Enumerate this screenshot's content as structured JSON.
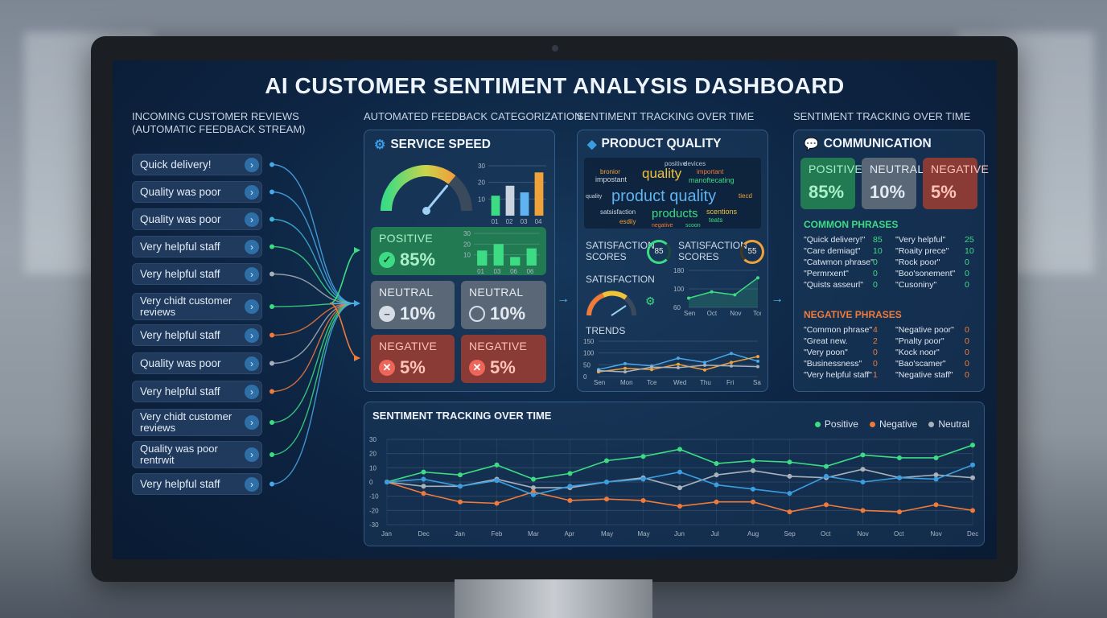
{
  "title": "AI CUSTOMER SENTIMENT ANALYSIS DASHBOARD",
  "colors": {
    "positive": "#3ddc84",
    "negative": "#f07a3a",
    "neutral": "#a9b1bb",
    "accent": "#3b9de0"
  },
  "sections": {
    "incoming_line1": "INCOMING CUSTOMER REVIEWS",
    "incoming_line2": "(AUTOMATIC FEEDBACK STREAM)",
    "categorization": "AUTOMATED FEEDBACK CATEGORIZATION",
    "tracking1": "SENTIMENT TRACKING OVER TIME",
    "tracking2": "SENTIMENT TRACKING OVER TIME"
  },
  "reviews": [
    {
      "line1": "Quick delivery!",
      "line2": ""
    },
    {
      "line1": "Quality was poor",
      "line2": ""
    },
    {
      "line1": "Quality was poor",
      "line2": ""
    },
    {
      "line1": "Very helpful staff",
      "line2": ""
    },
    {
      "line1": "Very helpful staff",
      "line2": ""
    },
    {
      "line1": "Very chidt customer",
      "line2": "reviews"
    },
    {
      "line1": "Very helpful staff",
      "line2": ""
    },
    {
      "line1": "Quality was poor",
      "line2": ""
    },
    {
      "line1": "Very helpful staff",
      "line2": ""
    },
    {
      "line1": "Very chidt customer",
      "line2": "reviews"
    },
    {
      "line1": "Quality was poor",
      "line2": "rentrwit"
    },
    {
      "line1": "Very helpful staff",
      "line2": ""
    }
  ],
  "service_speed": {
    "title": "SERVICE SPEED",
    "gauge_level": 0.72,
    "bar_ticks": [
      "30",
      "20",
      "10"
    ],
    "bar_labels": [
      "01",
      "02",
      "03",
      "04"
    ],
    "bar_values": [
      12,
      18,
      14,
      26
    ],
    "positive": {
      "label": "POSITIVE",
      "value": "85%"
    },
    "positive_bar_ticks": [
      "30",
      "20",
      "10"
    ],
    "positive_bar_labels": [
      "01",
      "03",
      "06",
      "06"
    ],
    "positive_bar_values": [
      14,
      20,
      8,
      16
    ],
    "neutral_a": {
      "label": "NEUTRAL",
      "value": "10%"
    },
    "neutral_b": {
      "label": "NEUTRAL",
      "value": "10%"
    },
    "negative_a": {
      "label": "NEGATIVE",
      "value": "5%"
    },
    "negative_b": {
      "label": "NEGATIVE",
      "value": "5%"
    }
  },
  "product_quality": {
    "title": "PRODUCT QUALITY",
    "words": [
      "positive",
      "devices",
      "bronior",
      "quality",
      "important",
      "impostant",
      "manoftecating",
      "quality",
      "product quality",
      "tiecd",
      "satsisfaction",
      "products",
      "scentions",
      "esdiiy",
      "negative",
      "scoon",
      "teats"
    ],
    "score1_label": "SATISFACTION\nSCORES",
    "score1_value": "85",
    "score2_label": "SATISFACTION\nSCORES",
    "score2_value": "55",
    "satisfaction_label": "SATISFACTION",
    "sat_chart": {
      "ticks": [
        "180",
        "100",
        "60"
      ],
      "labels": [
        "Sen",
        "Oct",
        "Nov",
        "Tce"
      ],
      "values": [
        55,
        72,
        64,
        110
      ]
    },
    "trends_label": "TRENDS",
    "trends_chart": {
      "ticks": [
        "150",
        "100",
        "50",
        "0"
      ],
      "labels": [
        "Sen",
        "Mon",
        "Tce",
        "Wed",
        "Thu",
        "Fri",
        "Sat"
      ],
      "series_blue": [
        30,
        55,
        45,
        78,
        60,
        98,
        65
      ],
      "series_orange": [
        20,
        35,
        30,
        52,
        28,
        60,
        85
      ],
      "series_gray": [
        25,
        20,
        40,
        38,
        48,
        45,
        42
      ]
    }
  },
  "communication": {
    "title": "COMMUNICATION",
    "positive": {
      "label": "POSITIVE",
      "value": "85%"
    },
    "neutral": {
      "label": "NEUTRAL",
      "value": "10%"
    },
    "negative": {
      "label": "NEGATIVE",
      "value": "5%"
    },
    "common_title": "COMMON PHRASES",
    "common": [
      [
        "\"Quick delivery!\"",
        "85",
        "\"Very helpful\"",
        "25"
      ],
      [
        "\"Care demiagt\"",
        "10",
        "\"Roaity prece\"",
        "10"
      ],
      [
        "\"Catwmon phrase\"",
        "0",
        "\"Rock poor\"",
        "0"
      ],
      [
        "\"Permrxent\"",
        "0",
        "\"Boo'sonement\"",
        "0"
      ],
      [
        "\"Quists asseurl\"",
        "0",
        "\"Cusoniny\"",
        "0"
      ]
    ],
    "negative_title": "NEGATIVE PHRASES",
    "negative_list": [
      [
        "\"Common phrase\"",
        "4",
        "\"Negative poor\"",
        "0"
      ],
      [
        "\"Great new.",
        "2",
        "\"Pnalty poor\"",
        "0"
      ],
      [
        "\"Very poon\"",
        "0",
        "\"Kock noor\"",
        "0"
      ],
      [
        "\"Businessness\"",
        "0",
        "\"Bao'scamer\"",
        "0"
      ],
      [
        "\"Very helpful staff\"",
        "1",
        "\"Negative staff\"",
        "0"
      ]
    ]
  },
  "tracking": {
    "title": "SENTIMENT TRACKING OVER TIME",
    "legend": [
      "Positive",
      "Negative",
      "Neutral"
    ]
  },
  "chart_data": {
    "type": "line",
    "title": "SENTIMENT TRACKING OVER TIME",
    "categories": [
      "Jan",
      "Dec",
      "Jan",
      "Feb",
      "Mar",
      "Apr",
      "May",
      "May",
      "Jun",
      "Jul",
      "Aug",
      "Sep",
      "Oct",
      "Nov",
      "Oct",
      "Nov",
      "Dec"
    ],
    "ylim": [
      -30,
      30
    ],
    "yticks": [
      "30",
      "20",
      "10",
      "0",
      "-10",
      "-20",
      "-30"
    ],
    "grid": true,
    "legend_position": "top-right",
    "series": [
      {
        "name": "Positive",
        "values": [
          0,
          7,
          5,
          12,
          2,
          6,
          15,
          18,
          23,
          13,
          15,
          14,
          11,
          19,
          17,
          17,
          26
        ]
      },
      {
        "name": "Negative",
        "values": [
          0,
          -8,
          -14,
          -15,
          -7,
          -13,
          -12,
          -13,
          -17,
          -14,
          -14,
          -21,
          -16,
          -20,
          -21,
          -16,
          -20
        ]
      },
      {
        "name": "Neutral",
        "values": [
          0,
          -3,
          -3,
          2,
          -4,
          -4,
          0,
          3,
          -4,
          5,
          8,
          4,
          3,
          9,
          3,
          5,
          3
        ]
      },
      {
        "name": "",
        "values": [
          0,
          2,
          -3,
          1,
          -9,
          -3,
          0,
          2,
          7,
          -2,
          -5,
          -8,
          4,
          0,
          3,
          2,
          12
        ]
      }
    ]
  }
}
